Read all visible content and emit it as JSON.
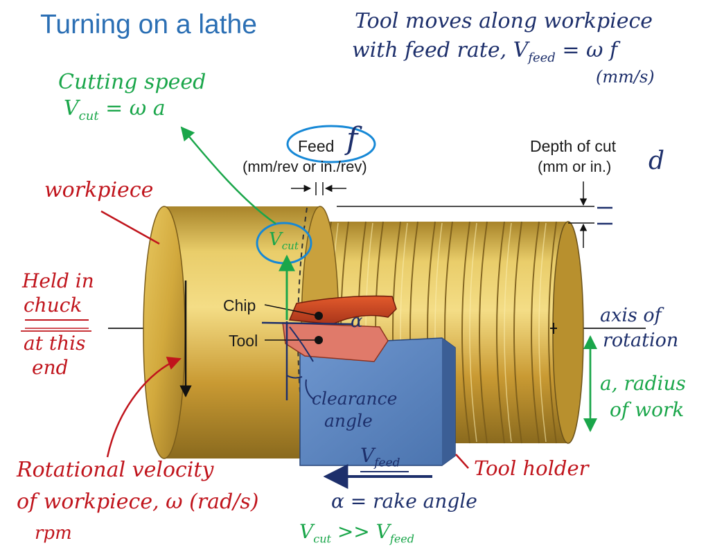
{
  "title": "Turning on a lathe",
  "printed_labels": {
    "feed": "Feed",
    "feed_units": "(mm/rev or in./rev)",
    "depth_of_cut": "Depth of cut",
    "depth_units": "(mm or in.)",
    "chip": "Chip",
    "tool": "Tool"
  },
  "annotations": {
    "tool_moves_line1": "Tool moves along workpiece",
    "tool_moves_line2": "with feed rate, V",
    "tool_moves_sub": "feed",
    "tool_moves_eq": " = ω f",
    "tool_moves_units": "(mm/s)",
    "cutting_speed": "Cutting speed",
    "v_cut_eq": "V",
    "v_cut_sub": "cut",
    "v_cut_rhs": " = ω a",
    "feed_f": "f",
    "depth_d": "d",
    "workpiece": "workpiece",
    "held1": "Held in",
    "held2": "chuck",
    "held3": "at this",
    "held4": "end",
    "v_cut_circle": "V",
    "v_cut_circle_sub": "cut",
    "alpha": "α",
    "axis1": "axis of",
    "axis2": "rotation",
    "radius1": "a, radius",
    "radius2": "of work",
    "clearance1": "clearance",
    "clearance2": "angle",
    "v_feed": "V",
    "v_feed_sub": "feed",
    "tool_holder": "Tool holder",
    "rot1": "Rotational velocity",
    "rot2": "of workpiece, ω (rad/s)",
    "rot3": "rpm",
    "rake": "α = rake angle",
    "compare_lhs": "V",
    "compare_lhs_sub": "cut",
    "compare_mid": " >> V",
    "compare_rhs_sub": "feed"
  },
  "colors": {
    "title": "#2b6fb4",
    "handwriting_navy": "#1d2f6b",
    "handwriting_red": "#c0141c",
    "handwriting_green": "#1aa64a",
    "circle_blue": "#1688d6",
    "workpiece_gold": "#d9b23c",
    "chip": "#c9471f",
    "tool": "#e07a6a",
    "tool_holder": "#5b86c0"
  }
}
